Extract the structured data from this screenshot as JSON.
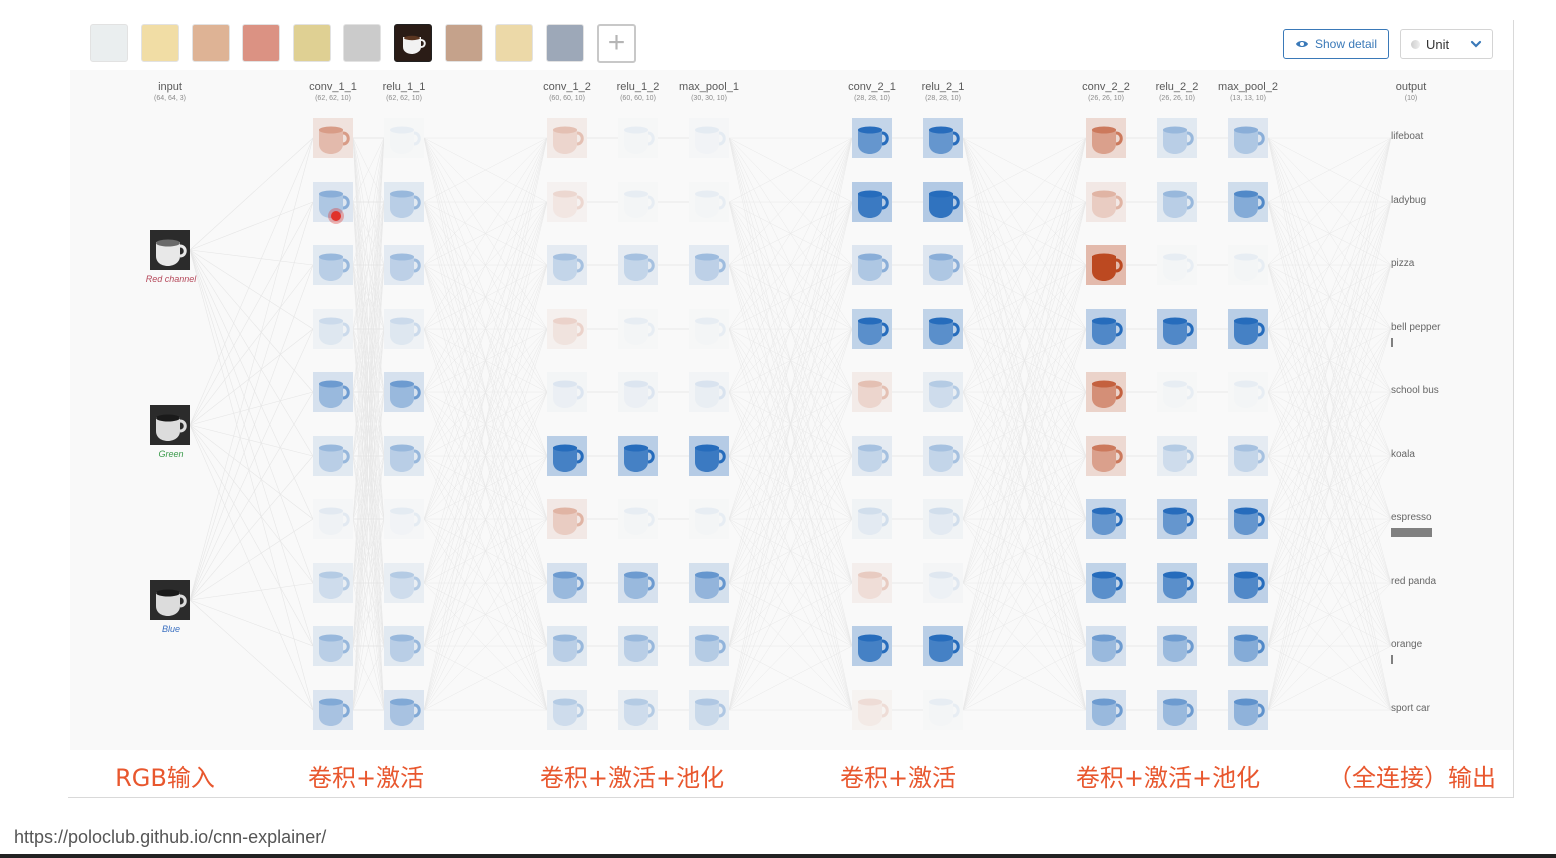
{
  "toolbar": {
    "thumbnails": [
      {
        "label": "lifeboat",
        "selected": false
      },
      {
        "label": "ladybug",
        "selected": false
      },
      {
        "label": "pizza",
        "selected": false
      },
      {
        "label": "bell pepper",
        "selected": false
      },
      {
        "label": "school bus",
        "selected": false
      },
      {
        "label": "koala",
        "selected": false
      },
      {
        "label": "espresso",
        "selected": true
      },
      {
        "label": "red panda",
        "selected": false
      },
      {
        "label": "orange",
        "selected": false
      },
      {
        "label": "sport car",
        "selected": false
      }
    ],
    "add_label": "+",
    "show_detail_label": "Show detail",
    "scale_select_value": "Unit"
  },
  "layers": [
    {
      "name": "input",
      "dims": "(64, 64, 3)"
    },
    {
      "name": "conv_1_1",
      "dims": "(62, 62, 10)"
    },
    {
      "name": "relu_1_1",
      "dims": "(62, 62, 10)"
    },
    {
      "name": "conv_1_2",
      "dims": "(60, 60, 10)"
    },
    {
      "name": "relu_1_2",
      "dims": "(60, 60, 10)"
    },
    {
      "name": "max_pool_1",
      "dims": "(30, 30, 10)"
    },
    {
      "name": "conv_2_1",
      "dims": "(28, 28, 10)"
    },
    {
      "name": "relu_2_1",
      "dims": "(28, 28, 10)"
    },
    {
      "name": "conv_2_2",
      "dims": "(26, 26, 10)"
    },
    {
      "name": "relu_2_2",
      "dims": "(26, 26, 10)"
    },
    {
      "name": "max_pool_2",
      "dims": "(13, 13, 10)"
    },
    {
      "name": "output",
      "dims": "(10)"
    }
  ],
  "input_channels": [
    {
      "label": "Red channel",
      "color": "#b5485a"
    },
    {
      "label": "Green",
      "color": "#3a9a4a"
    },
    {
      "label": "Blue",
      "color": "#3a6fc0"
    }
  ],
  "outputs": [
    {
      "label": "lifeboat",
      "prob": 0.0
    },
    {
      "label": "ladybug",
      "prob": 0.0
    },
    {
      "label": "pizza",
      "prob": 0.0
    },
    {
      "label": "bell pepper",
      "prob": 0.02
    },
    {
      "label": "school bus",
      "prob": 0.0
    },
    {
      "label": "koala",
      "prob": 0.0
    },
    {
      "label": "espresso",
      "prob": 0.97
    },
    {
      "label": "red panda",
      "prob": 0.0
    },
    {
      "label": "orange",
      "prob": 0.02
    },
    {
      "label": "sport car",
      "prob": 0.0
    }
  ],
  "activations": {
    "conv_1_1": [
      -0.35,
      0.35,
      0.3,
      0.12,
      0.45,
      0.3,
      0.04,
      0.2,
      0.3,
      0.38
    ],
    "relu_1_1": [
      0.02,
      0.3,
      0.28,
      0.12,
      0.45,
      0.3,
      0.03,
      0.2,
      0.3,
      0.38
    ],
    "conv_1_2": [
      -0.2,
      -0.1,
      0.25,
      -0.12,
      0.06,
      0.85,
      -0.25,
      0.45,
      0.3,
      0.2
    ],
    "relu_1_2": [
      0.02,
      0.02,
      0.25,
      0.02,
      0.06,
      0.85,
      0.02,
      0.45,
      0.3,
      0.2
    ],
    "max_pool_1": [
      0.03,
      0.02,
      0.28,
      0.02,
      0.07,
      0.9,
      0.02,
      0.48,
      0.32,
      0.22
    ],
    "conv_2_1": [
      0.7,
      0.9,
      0.35,
      0.75,
      -0.2,
      0.25,
      0.1,
      -0.15,
      0.85,
      -0.08
    ],
    "relu_2_1": [
      0.7,
      0.95,
      0.35,
      0.75,
      0.2,
      0.25,
      0.1,
      0.05,
      0.85,
      0.02
    ],
    "conv_2_2": [
      -0.5,
      -0.25,
      -1.0,
      0.8,
      -0.6,
      -0.5,
      0.7,
      0.75,
      0.45,
      0.45
    ],
    "relu_2_2": [
      0.3,
      0.3,
      0.02,
      0.8,
      0.02,
      0.2,
      0.7,
      0.75,
      0.45,
      0.45
    ],
    "max_pool_2": [
      0.35,
      0.55,
      0.02,
      0.85,
      0.02,
      0.25,
      0.7,
      0.8,
      0.55,
      0.5
    ]
  },
  "groups": [
    "RGB输入",
    "卷积+激活",
    "卷积+激活+池化",
    "卷积+激活",
    "卷积+激活+池化",
    "（全连接）输出"
  ],
  "footer_url": "https://poloclub.github.io/cnn-explainer/"
}
